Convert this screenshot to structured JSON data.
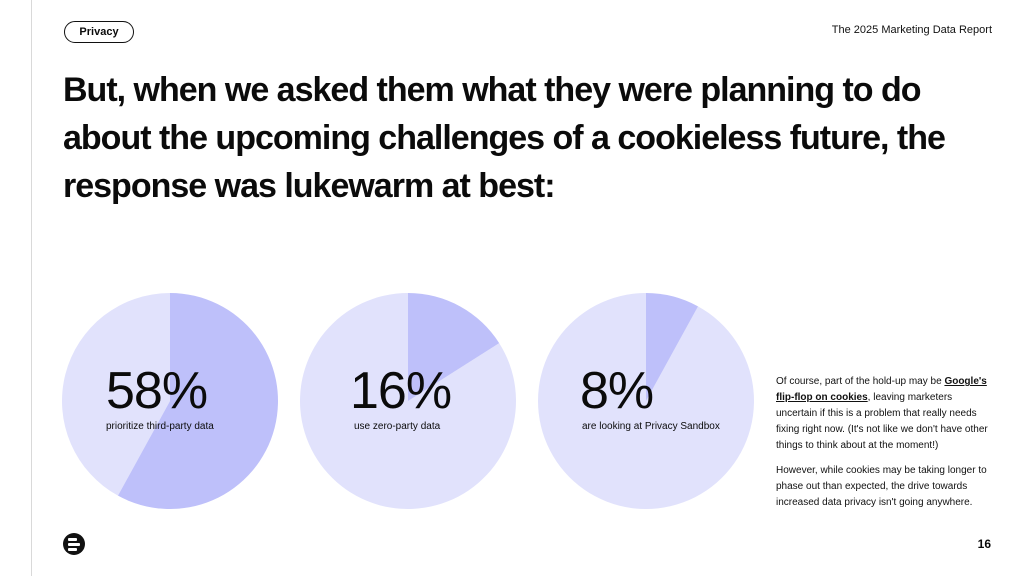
{
  "header": {
    "tag": "Privacy",
    "report_title": "The 2025 Marketing Data Report"
  },
  "headline": {
    "lines": [
      "But, when we asked them what they were planning to do",
      "about the upcoming challenges of a cookieless future, the",
      "response was lukewarm at best:"
    ]
  },
  "stats": [
    {
      "value": "58%",
      "label": "prioritize third-party data"
    },
    {
      "value": "16%",
      "label": "use zero-party data"
    },
    {
      "value": "8%",
      "label": "are looking at Privacy Sandbox"
    }
  ],
  "chart_data": [
    {
      "type": "pie",
      "slices": [
        {
          "value": 58
        },
        {
          "value": 42
        }
      ],
      "data_label": "58%",
      "caption": "prioritize third-party data",
      "colors": [
        "#bec0fa",
        "#e1e2fc"
      ]
    },
    {
      "type": "pie",
      "slices": [
        {
          "value": 16
        },
        {
          "value": 84
        }
      ],
      "data_label": "16%",
      "caption": "use zero-party data",
      "colors": [
        "#bec0fa",
        "#e1e2fc"
      ]
    },
    {
      "type": "pie",
      "slices": [
        {
          "value": 8
        },
        {
          "value": 92
        }
      ],
      "data_label": "8%",
      "caption": "are looking at Privacy Sandbox",
      "colors": [
        "#bec0fa",
        "#e1e2fc"
      ]
    }
  ],
  "body": {
    "p1_before": "Of course, part of the hold-up may be ",
    "p1_link": "Google's flip-flop on cookies",
    "p1_after": ", leaving marketers uncertain if this is a problem that really needs fixing right now. (It's not like we don't have other things to think about at the moment!)",
    "p2": "However, while cookies may be taking longer to phase out than expected, the drive towards increased data privacy isn't going anywhere."
  },
  "footer": {
    "logo_icon": "brand-logo-icon",
    "page_number": "16"
  },
  "colors": {
    "pie_highlight": "#bec0fa",
    "pie_base": "#e1e2fc",
    "text": "#0b0b0b"
  }
}
